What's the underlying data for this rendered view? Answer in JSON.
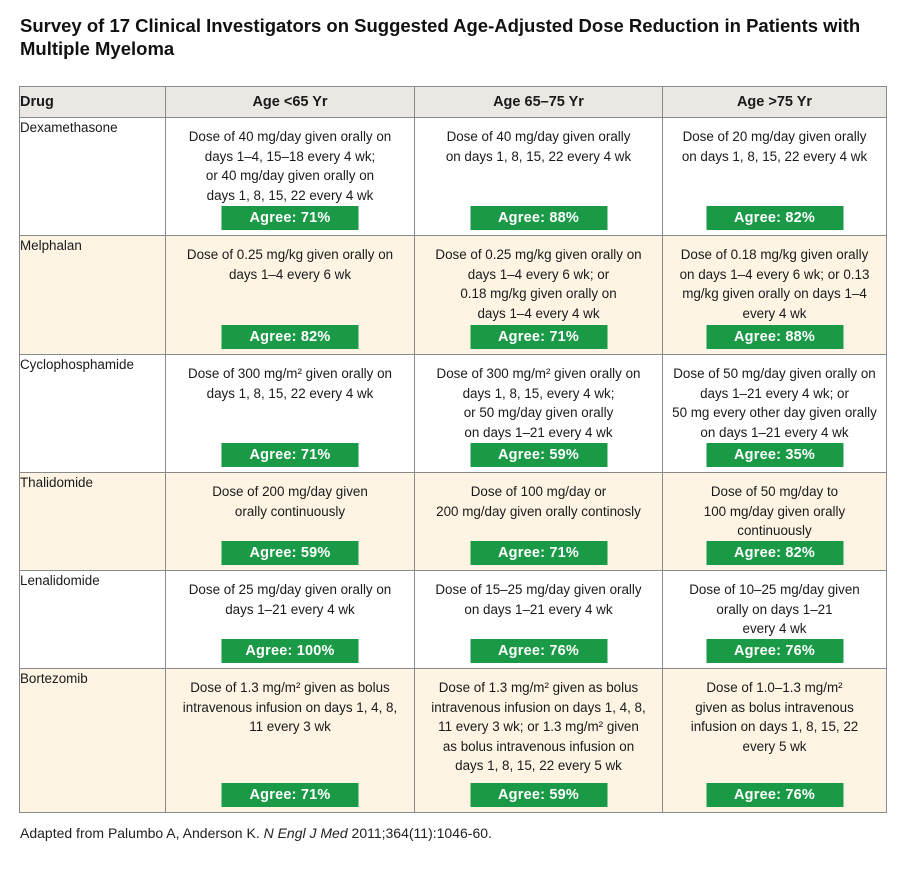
{
  "title": "Survey of 17 Clinical Investigators on Suggested Age-Adjusted Dose Reduction in Patients with Multiple Myeloma",
  "headers": [
    "Drug",
    "Age <65 Yr",
    "Age 65–75 Yr",
    "Age >75 Yr"
  ],
  "rows": [
    {
      "drug": "Dexamethasone",
      "cells": [
        {
          "dose": "Dose of 40 mg/day given orally on\ndays 1–4, 15–18 every 4 wk;\nor 40 mg/day given orally on\ndays 1, 8, 15, 22 every 4 wk",
          "agree": "Agree: 71%"
        },
        {
          "dose": "Dose of 40 mg/day given orally\non days 1, 8, 15, 22 every 4 wk",
          "agree": "Agree: 88%"
        },
        {
          "dose": "Dose of 20 mg/day given orally\non days 1, 8, 15, 22 every 4 wk",
          "agree": "Agree: 82%"
        }
      ]
    },
    {
      "drug": "Melphalan",
      "cells": [
        {
          "dose": "Dose of 0.25 mg/kg given orally on\ndays 1–4 every 6 wk",
          "agree": "Agree: 82%"
        },
        {
          "dose": "Dose of 0.25 mg/kg given orally on\ndays 1–4 every 6 wk; or\n0.18 mg/kg given orally on\ndays 1–4 every 4 wk",
          "agree": "Agree: 71%"
        },
        {
          "dose": "Dose of 0.18 mg/kg given orally\non days 1–4 every 6 wk; or 0.13\nmg/kg given orally on days 1–4\nevery 4 wk",
          "agree": "Agree: 88%"
        }
      ]
    },
    {
      "drug": "Cyclophosphamide",
      "cells": [
        {
          "dose": "Dose of 300 mg/m² given orally on\ndays 1, 8, 15, 22 every 4 wk",
          "agree": "Agree: 71%"
        },
        {
          "dose": "Dose of 300 mg/m² given orally on\ndays 1, 8, 15, every 4 wk;\nor 50 mg/day given orally\non days 1–21 every 4 wk",
          "agree": "Agree: 59%"
        },
        {
          "dose": "Dose of 50 mg/day given orally on\ndays 1–21 every 4 wk; or\n50 mg every other day given orally\non days 1–21 every 4 wk",
          "agree": "Agree: 35%"
        }
      ]
    },
    {
      "drug": "Thalidomide",
      "cells": [
        {
          "dose": "Dose of 200 mg/day given\norally continuously",
          "agree": "Agree: 59%"
        },
        {
          "dose": "Dose of 100 mg/day or\n200 mg/day given orally continosly",
          "agree": "Agree: 71%"
        },
        {
          "dose": "Dose of 50 mg/day to\n100 mg/day given orally\ncontinuously",
          "agree": "Agree: 82%"
        }
      ]
    },
    {
      "drug": "Lenalidomide",
      "cells": [
        {
          "dose": "Dose of 25 mg/day given orally on\ndays 1–21 every 4 wk",
          "agree": "Agree: 100%"
        },
        {
          "dose": "Dose of 15–25 mg/day given orally\non days 1–21 every 4 wk",
          "agree": "Agree: 76%"
        },
        {
          "dose": "Dose of 10–25 mg/day given\norally on days 1–21\nevery 4 wk",
          "agree": "Agree: 76%"
        }
      ]
    },
    {
      "drug": "Bortezomib",
      "cells": [
        {
          "dose": "Dose of 1.3 mg/m² given as bolus\nintravenous infusion on days 1, 4, 8,\n11 every 3 wk",
          "agree": "Agree: 71%"
        },
        {
          "dose": "Dose of 1.3 mg/m² given as bolus\nintravenous infusion on days 1, 4, 8,\n11 every 3 wk; or 1.3 mg/m² given\nas bolus intravenous infusion on\ndays 1, 8, 15, 22 every 5 wk",
          "agree": "Agree: 59%"
        },
        {
          "dose": "Dose of 1.0–1.3 mg/m²\ngiven as bolus intravenous\ninfusion on days 1, 8, 15, 22\nevery 5 wk",
          "agree": "Agree: 76%"
        }
      ]
    }
  ],
  "footnote": {
    "prefix": "Adapted from Palumbo A, Anderson K. ",
    "journal": "N Engl J Med",
    "suffix": " 2011;364(11):1046-60."
  },
  "colors": {
    "agree_bg": "#1a9a47",
    "header_bg": "#ebe8e4",
    "alt_row_bg": "#fdf4e4",
    "border": "#8a8a8a"
  }
}
